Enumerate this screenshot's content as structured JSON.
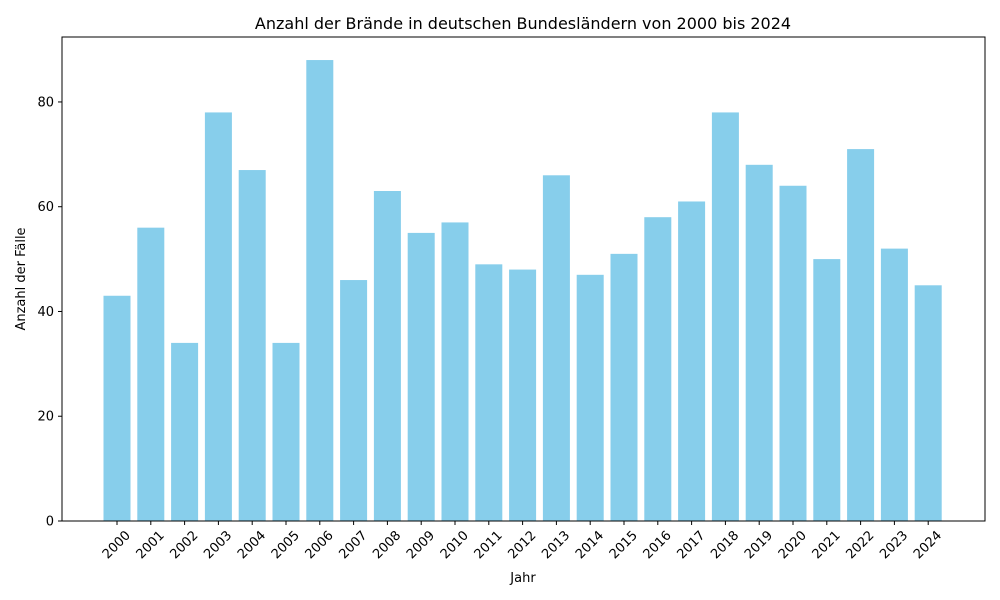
{
  "chart_data": {
    "type": "bar",
    "title": "Anzahl der Brände in deutschen Bundesländern von 2000 bis 2024",
    "xlabel": "Jahr",
    "ylabel": "Anzahl der Fälle",
    "categories": [
      "2000",
      "2001",
      "2002",
      "2003",
      "2004",
      "2005",
      "2006",
      "2007",
      "2008",
      "2009",
      "2010",
      "2011",
      "2012",
      "2013",
      "2014",
      "2015",
      "2016",
      "2017",
      "2018",
      "2019",
      "2020",
      "2021",
      "2022",
      "2023",
      "2024"
    ],
    "values": [
      43,
      56,
      34,
      78,
      67,
      34,
      88,
      46,
      63,
      55,
      57,
      49,
      48,
      66,
      47,
      51,
      58,
      61,
      78,
      68,
      64,
      50,
      71,
      52,
      45
    ],
    "ylim": [
      0,
      92.4
    ],
    "yticks": [
      0,
      20,
      40,
      60,
      80
    ],
    "grid": false,
    "legend": "none",
    "bar_color": "#87CEEB",
    "x_tick_rotation": 45
  }
}
